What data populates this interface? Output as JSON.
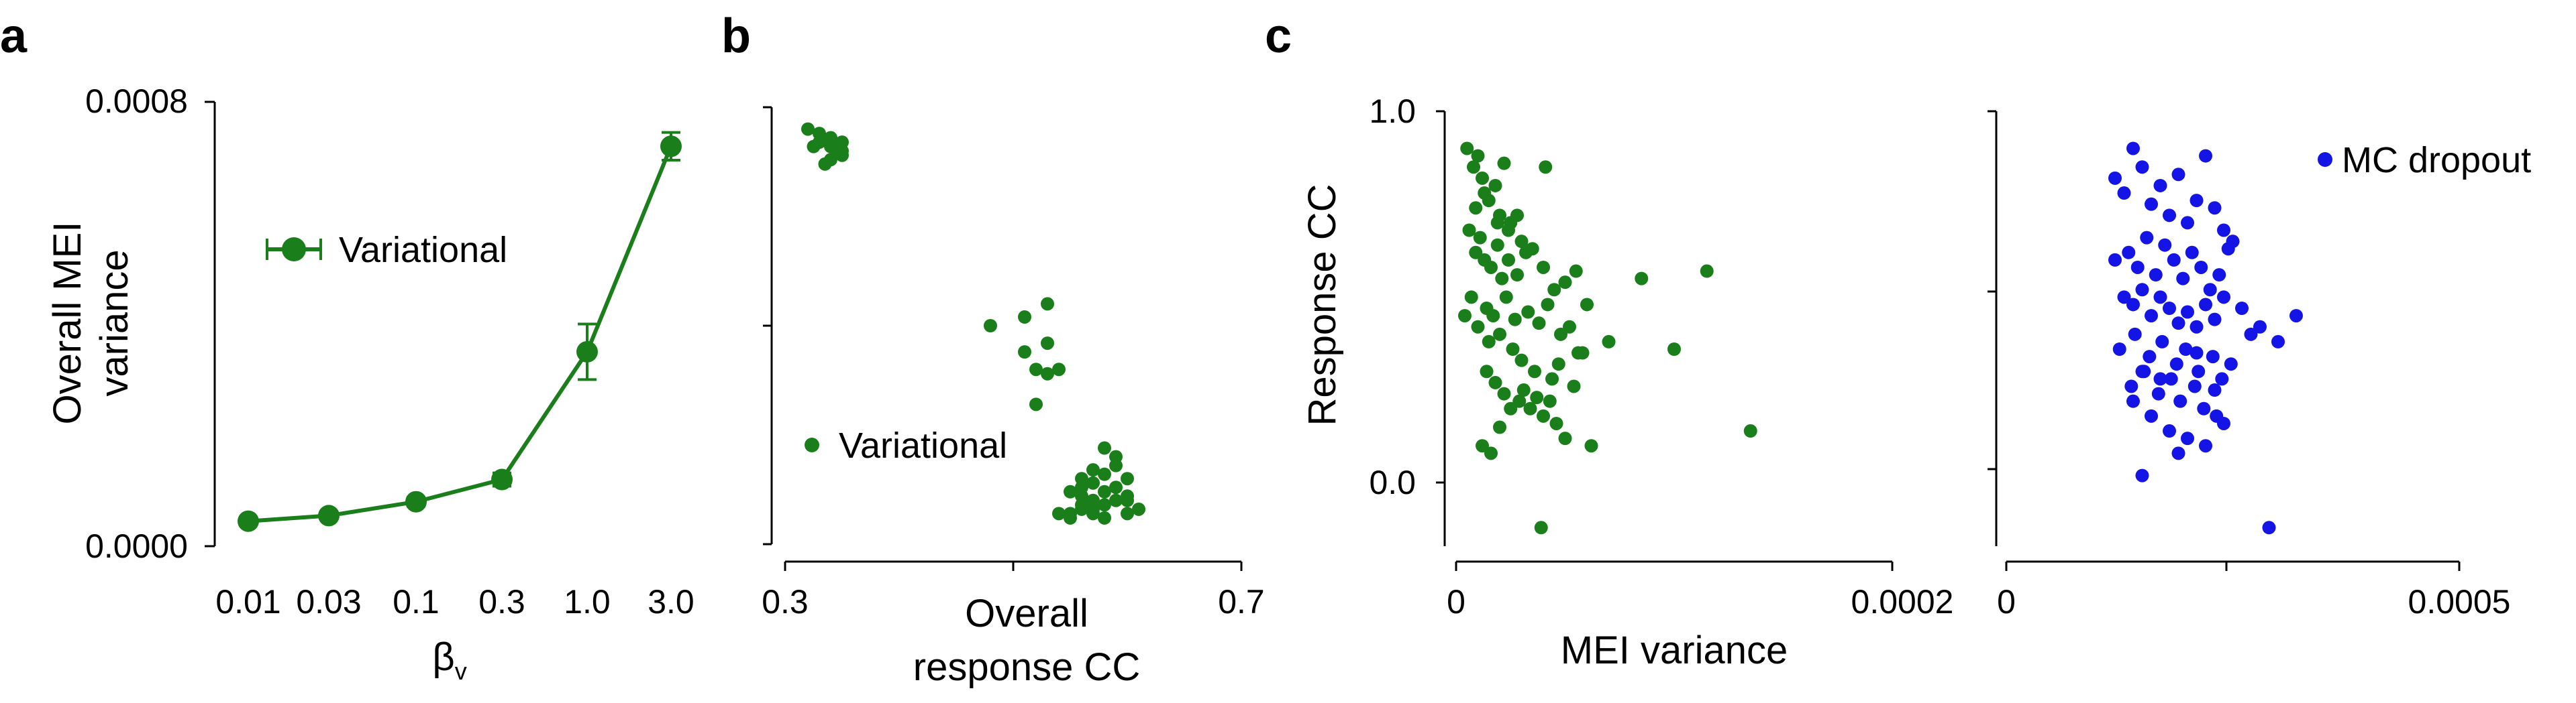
{
  "colors": {
    "green": "#1a7f1a",
    "blue": "#1414e6",
    "axis": "#000000"
  },
  "chart_data": [
    {
      "panel": "a",
      "type": "line",
      "x_scale": "categorical",
      "categories": [
        "0.01",
        "0.03",
        "0.1",
        "0.3",
        "1.0",
        "3.0"
      ],
      "series": [
        {
          "name": "Variational",
          "values": [
            4.5e-05,
            5.5e-05,
            8e-05,
            0.00012,
            0.00035,
            0.00072
          ],
          "errors": [
            4e-06,
            4e-06,
            8e-06,
            1.2e-05,
            5e-05,
            2.5e-05
          ]
        }
      ],
      "xlabel_main": "β",
      "xlabel_sub": "v",
      "ylabel": [
        "Overall MEI",
        "variance"
      ],
      "ylim": [
        0.0,
        0.0008
      ],
      "yticks": [
        0.0,
        0.0008
      ],
      "ytick_labels": [
        "0.0000",
        "0.0008"
      ],
      "legend": "Variational",
      "legend_position": "center-left"
    },
    {
      "panel": "b",
      "type": "scatter",
      "series": [
        {
          "name": "Variational",
          "x": [
            0.32,
            0.33,
            0.34,
            0.35,
            0.34,
            0.33,
            0.34,
            0.35,
            0.335,
            0.345,
            0.34,
            0.35,
            0.325,
            0.48,
            0.51,
            0.53,
            0.52,
            0.51,
            0.53,
            0.54,
            0.52,
            0.53,
            0.54,
            0.55,
            0.56,
            0.57,
            0.58,
            0.59,
            0.6,
            0.61,
            0.55,
            0.56,
            0.57,
            0.58,
            0.59,
            0.56,
            0.57,
            0.58,
            0.6,
            0.59,
            0.57,
            0.55,
            0.58,
            0.56,
            0.59,
            0.6,
            0.57,
            0.56,
            0.58,
            0.6
          ],
          "y": [
            0.95,
            0.92,
            0.93,
            0.9,
            0.88,
            0.94,
            0.91,
            0.89,
            0.87,
            0.9,
            0.93,
            0.92,
            0.91,
            0.5,
            0.52,
            0.46,
            0.4,
            0.44,
            0.39,
            0.4,
            0.32,
            0.55,
            0.07,
            0.06,
            0.08,
            0.07,
            0.09,
            0.1,
            0.11,
            0.08,
            0.12,
            0.13,
            0.14,
            0.16,
            0.18,
            0.09,
            0.1,
            0.12,
            0.15,
            0.2,
            0.17,
            0.07,
            0.06,
            0.11,
            0.13,
            0.07,
            0.08,
            0.15,
            0.22,
            0.1
          ]
        }
      ],
      "xlabel": [
        "Overall",
        "response CC"
      ],
      "xlim": [
        0.3,
        0.7
      ],
      "xticks": [
        0.3,
        0.7
      ],
      "xtick_labels": [
        "0.3",
        "0.7"
      ],
      "ylim": [
        0,
        1
      ],
      "legend": "Variational",
      "legend_position": "center-left"
    },
    {
      "panel": "c-left",
      "type": "scatter",
      "series": [
        {
          "name": "Variational",
          "x": [
            5e-06,
            8e-06,
            1e-05,
            1.2e-05,
            1.5e-05,
            1.8e-05,
            2e-05,
            2.2e-05,
            2.5e-05,
            3e-05,
            6e-06,
            9e-06,
            1.1e-05,
            1.3e-05,
            1.6e-05,
            1.9e-05,
            2.1e-05,
            2.4e-05,
            2.8e-05,
            3.2e-05,
            3.5e-05,
            4e-05,
            4.5e-05,
            5e-05,
            5.5e-05,
            6e-05,
            7e-06,
            1.4e-05,
            1.7e-05,
            2.3e-05,
            2.7e-05,
            3.3e-05,
            3.8e-05,
            4.2e-05,
            4.8e-05,
            5.2e-05,
            5.8e-05,
            4e-06,
            1e-05,
            1.5e-05,
            2e-05,
            2.6e-05,
            3e-05,
            3.6e-05,
            4.4e-05,
            4.7e-05,
            5.4e-05,
            7e-05,
            8.5e-05,
            0.0001,
            0.000115,
            0.000135,
            1.4e-05,
            1.8e-05,
            2.2e-05,
            2.9e-05,
            3.4e-05,
            4e-05,
            4.6e-05,
            5e-05,
            1.2e-05,
            1.6e-05,
            2e-05,
            2.5e-05,
            3.1e-05,
            3.7e-05,
            4.3e-05,
            5.6e-05,
            6.2e-05,
            9e-06,
            1.3e-05,
            1.9e-05,
            2.4e-05,
            2.8e-05,
            4.1e-05,
            3.9e-05
          ],
          "y": [
            0.9,
            0.85,
            0.88,
            0.82,
            0.76,
            0.8,
            0.72,
            0.86,
            0.7,
            0.65,
            0.68,
            0.62,
            0.66,
            0.6,
            0.58,
            0.64,
            0.55,
            0.6,
            0.56,
            0.62,
            0.63,
            0.58,
            0.52,
            0.54,
            0.57,
            0.48,
            0.5,
            0.47,
            0.45,
            0.5,
            0.44,
            0.46,
            0.43,
            0.48,
            0.4,
            0.42,
            0.35,
            0.45,
            0.42,
            0.38,
            0.4,
            0.36,
            0.33,
            0.3,
            0.28,
            0.32,
            0.26,
            0.38,
            0.55,
            0.36,
            0.57,
            0.14,
            0.3,
            0.27,
            0.24,
            0.22,
            0.2,
            0.18,
            0.16,
            0.12,
            0.1,
            0.08,
            0.15,
            0.2,
            0.25,
            0.23,
            0.22,
            0.35,
            0.1,
            0.74,
            0.78,
            0.7,
            0.68,
            0.72,
            0.85,
            -0.12
          ]
        }
      ],
      "xlabel": "MEI variance",
      "ylabel": "Response CC",
      "xlim": [
        0,
        0.0002
      ],
      "xticks": [
        0,
        0.0002
      ],
      "xtick_labels": [
        "0",
        "0.0002"
      ],
      "ylim": [
        -0.17,
        1.0
      ],
      "yticks": [
        1.0,
        0.0
      ],
      "ytick_labels": [
        "1.0",
        "0.0"
      ]
    },
    {
      "panel": "c-right",
      "type": "scatter",
      "series": [
        {
          "name": "MC dropout",
          "x": [
            0.00012,
            0.00013,
            0.00014,
            0.00015,
            0.00016,
            0.00017,
            0.00018,
            0.00019,
            0.0002,
            0.00021,
            0.00022,
            0.00023,
            0.00024,
            0.00025,
            0.00012,
            0.000135,
            0.000145,
            0.000155,
            0.000165,
            0.000175,
            0.000185,
            0.000195,
            0.000205,
            0.000215,
            0.000225,
            0.000235,
            0.000245,
            0.00013,
            0.00014,
            0.00015,
            0.00016,
            0.00017,
            0.00018,
            0.00019,
            0.0002,
            0.00021,
            0.00022,
            0.00023,
            0.00024,
            0.00026,
            0.00027,
            0.00028,
            0.0003,
            0.00032,
            0.000125,
            0.000142,
            0.000158,
            0.000172,
            0.000188,
            0.000198,
            0.000212,
            0.000228,
            0.000238,
            0.000248,
            0.000138,
            0.000152,
            0.000168,
            0.000182,
            0.000192,
            0.000208,
            0.000218,
            0.000232,
            0.00014,
            0.00016,
            0.00018,
            0.0002,
            0.00022,
            0.00024,
            0.00015,
            0.00017,
            0.00019,
            0.00021,
            0.00023,
            0.00015,
            0.00029
          ],
          "y": [
            0.82,
            0.78,
            0.9,
            0.85,
            0.75,
            0.8,
            0.72,
            0.83,
            0.7,
            0.76,
            0.88,
            0.74,
            0.68,
            0.65,
            0.6,
            0.62,
            0.58,
            0.66,
            0.56,
            0.64,
            0.6,
            0.55,
            0.62,
            0.58,
            0.52,
            0.56,
            0.63,
            0.5,
            0.48,
            0.52,
            0.45,
            0.5,
            0.47,
            0.43,
            0.46,
            0.42,
            0.48,
            0.44,
            0.5,
            0.47,
            0.4,
            0.42,
            0.38,
            0.45,
            0.36,
            0.4,
            0.34,
            0.38,
            0.32,
            0.36,
            0.3,
            0.34,
            0.28,
            0.32,
            0.26,
            0.3,
            0.24,
            0.28,
            0.22,
            0.26,
            0.2,
            0.18,
            0.22,
            0.18,
            0.14,
            0.12,
            0.1,
            0.16,
            0.3,
            0.28,
            0.08,
            0.35,
            0.25,
            0.02,
            -0.12
          ]
        }
      ],
      "xlim": [
        0,
        0.0005
      ],
      "xticks": [
        0,
        0.0005
      ],
      "xtick_labels": [
        "0",
        "0.0005"
      ],
      "ylim": [
        -0.17,
        1.0
      ],
      "legend": "MC dropout",
      "legend_position": "top-right"
    }
  ],
  "panel_labels": [
    "a",
    "b",
    "c"
  ]
}
